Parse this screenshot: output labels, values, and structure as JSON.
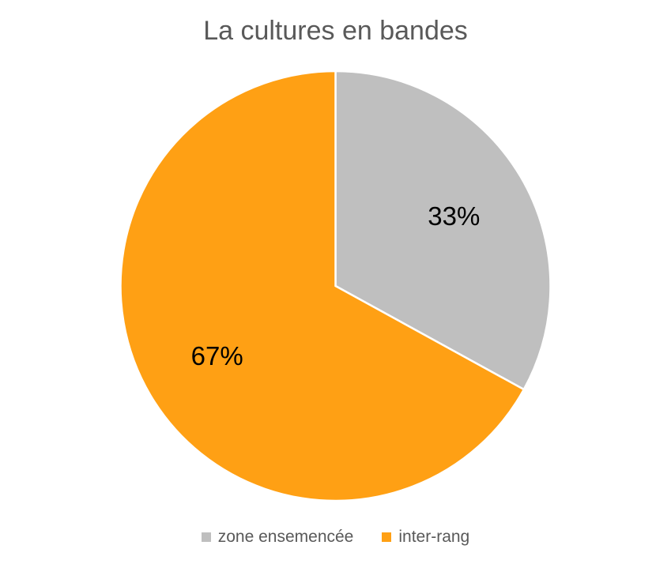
{
  "chart_data": {
    "type": "pie",
    "title": "La cultures en bandes",
    "categories": [
      "zone ensemencée",
      "inter-rang"
    ],
    "values": [
      33,
      67
    ],
    "data_labels": [
      "33%",
      "67%"
    ],
    "colors": [
      "#BFBFBF",
      "#FFA014"
    ],
    "legend_position": "bottom",
    "start_angle": "12 o'clock",
    "direction": "clockwise"
  }
}
